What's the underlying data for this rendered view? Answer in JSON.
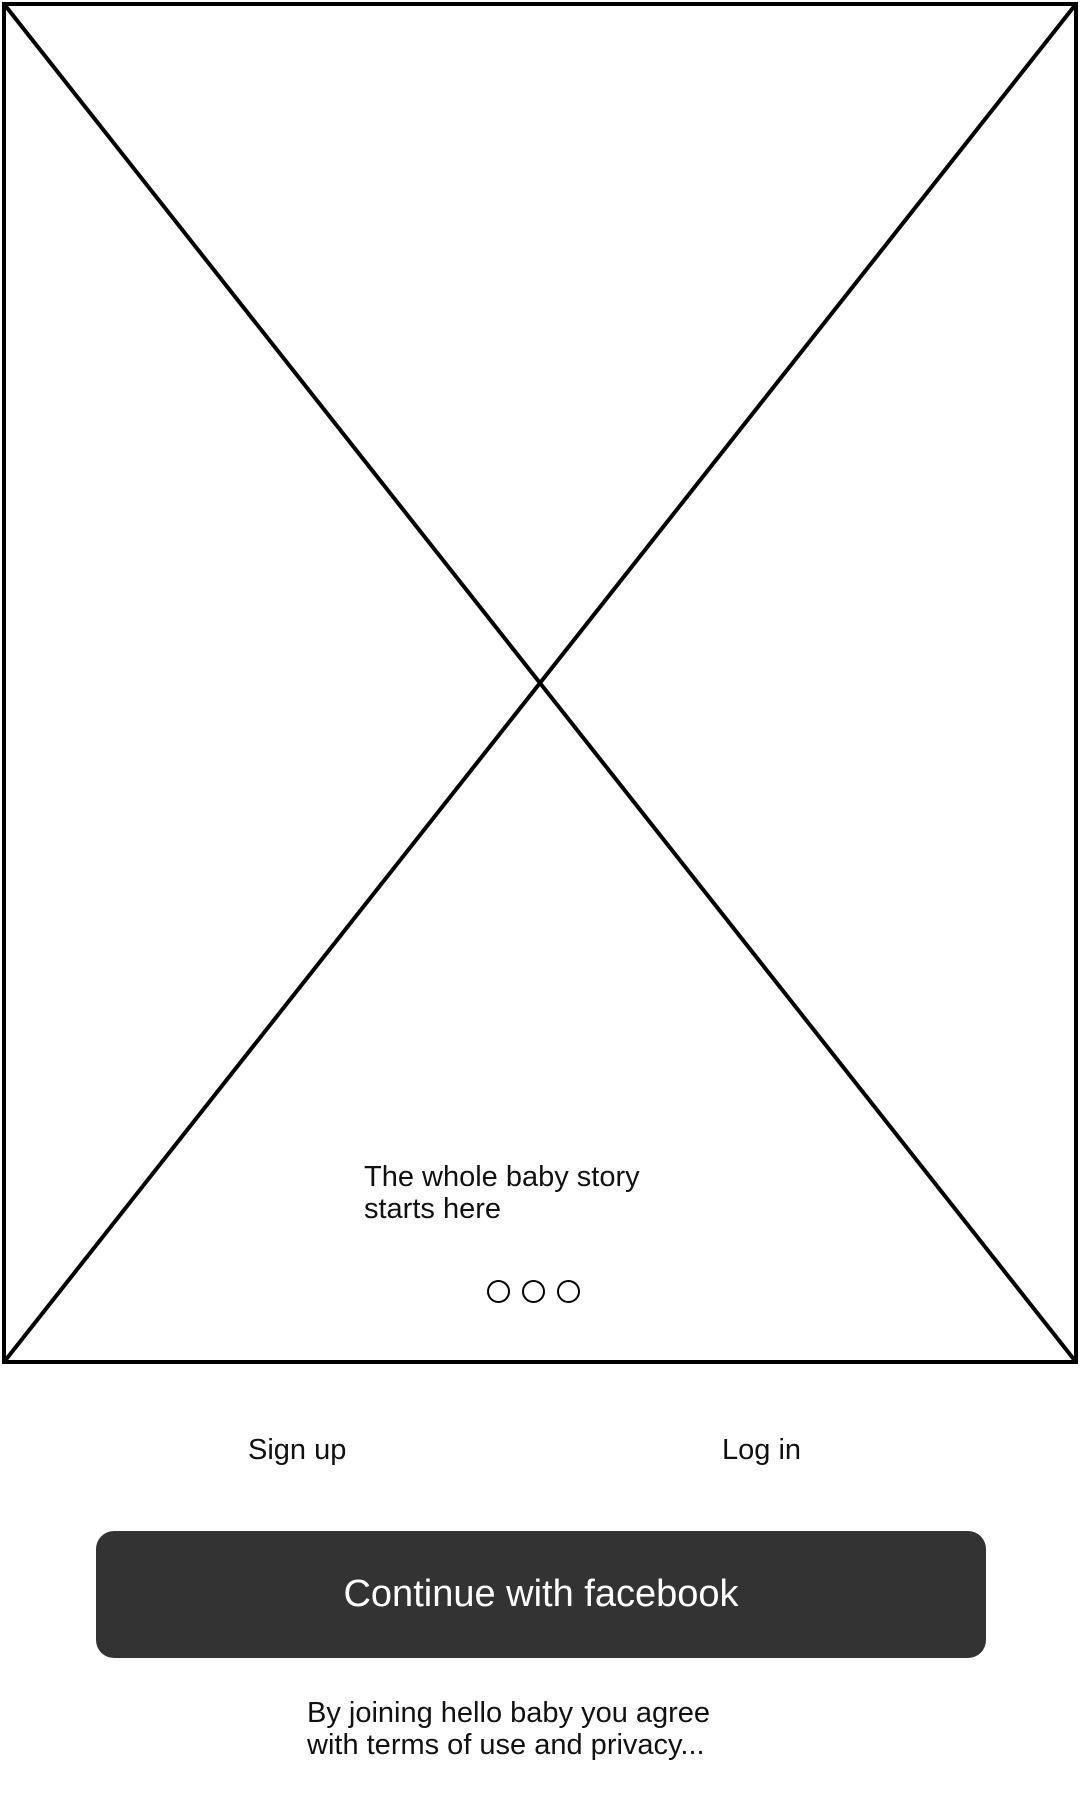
{
  "hero": {
    "image_placeholder": "image-placeholder",
    "tagline_line1": "The whole baby story",
    "tagline_line2": "starts here",
    "pager": {
      "count": 3,
      "active_index": null
    }
  },
  "auth": {
    "signup_label": "Sign up",
    "login_label": "Log in"
  },
  "facebook_button": {
    "label": "Continue with facebook",
    "background": "#333333",
    "text_color": "#ffffff"
  },
  "terms": {
    "line1": "By joining hello baby you agree",
    "line2": "with terms of use and privacy..."
  }
}
